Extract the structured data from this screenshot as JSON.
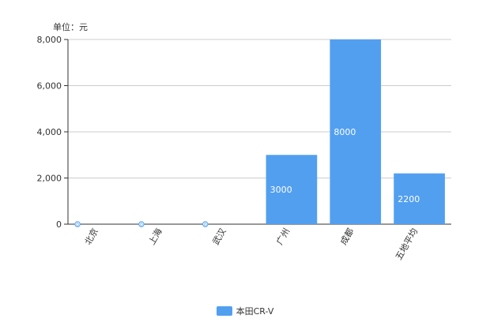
{
  "chart_data": {
    "type": "bar",
    "unit_label": "单位：元",
    "categories": [
      "北京",
      "上海",
      "武汉",
      "广州",
      "成都",
      "五地平均"
    ],
    "series": [
      {
        "name": "本田CR-V",
        "values": [
          0,
          0,
          0,
          3000,
          8000,
          2200
        ],
        "color": "#529ff0"
      }
    ],
    "data_labels": [
      "0",
      "0",
      "0",
      "3000",
      "8000",
      "2200"
    ],
    "ylim": [
      0,
      8000
    ],
    "yticks": [
      "0",
      "2,000",
      "4,000",
      "6,000",
      "8,000"
    ],
    "grid": true,
    "legend_position": "bottom-center"
  }
}
